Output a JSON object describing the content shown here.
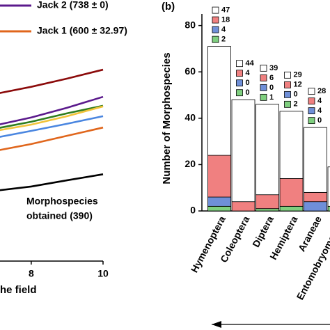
{
  "chart_data": [
    {
      "type": "line",
      "x": [
        7,
        8,
        9,
        10
      ],
      "xlim": [
        7.13,
        10
      ],
      "xticks": [
        8,
        10
      ],
      "ylim": [
        0,
        1173
      ],
      "xlabel": "he field",
      "annotation": [
        "Morphospecies",
        "obtained (390)"
      ],
      "series": [
        {
          "name": "Jack 2 (738 ± 0)",
          "color": "#5b1a8c",
          "values": [
            610,
            645,
            689,
            738
          ]
        },
        {
          "name": "Jack 1 (600 ± 32.97)",
          "color": "#e0661c",
          "values": [
            495,
            526,
            563,
            600
          ]
        },
        {
          "color": "#8b0a0a",
          "values": [
            751,
            783,
            820,
            860
          ]
        },
        {
          "color": "#f2c33a",
          "values": [
            585,
            613,
            651,
            695
          ]
        },
        {
          "color": "#2e7d1e",
          "values": [
            595,
            626,
            664,
            698
          ]
        },
        {
          "color": "#4a86e0",
          "values": [
            554,
            585,
            617,
            651
          ]
        },
        {
          "color": "#000000",
          "values": [
            316,
            335,
            363,
            390
          ]
        }
      ]
    },
    {
      "type": "bar",
      "stacked": true,
      "panel_label": "(b)",
      "ylabel": "Number of Morphospecies",
      "categories": [
        "Hymenoptera",
        "Coleoptera",
        "Diptera",
        "Hemiptera",
        "Araneae",
        "Entomobryomorpha"
      ],
      "ylim": [
        0,
        85
      ],
      "yticks": [
        0,
        20,
        40,
        60,
        80
      ],
      "series": [
        {
          "color": "#7fcf7f",
          "values": [
            2,
            0,
            1,
            2,
            0,
            2
          ]
        },
        {
          "color": "#6f8fd8",
          "values": [
            4,
            0,
            0,
            0,
            4,
            0
          ]
        },
        {
          "color": "#f08080",
          "values": [
            18,
            4,
            6,
            12,
            4,
            0
          ]
        },
        {
          "color": "#ffffff",
          "values": [
            47,
            44,
            39,
            29,
            28,
            17
          ]
        }
      ]
    }
  ]
}
